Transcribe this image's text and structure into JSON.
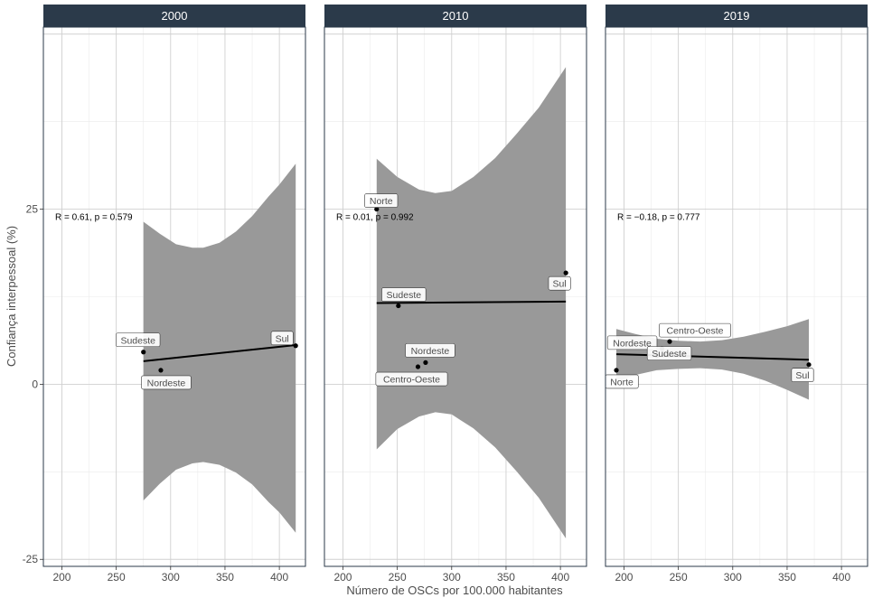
{
  "xlabel": "Número de OSCs por 100.000 habitantes",
  "ylabel": "Confiança interpessoal (%)",
  "y_ticks": [
    -25,
    0,
    25
  ],
  "x_ticks": [
    200,
    250,
    300,
    350,
    400
  ],
  "strip_color": "#2b3a4a",
  "ribbon_color": "#999999",
  "chart_data": [
    {
      "type": "scatter",
      "title": "2000",
      "xlim": [
        183,
        424
      ],
      "ylim": [
        -26,
        51
      ],
      "stat_text": "R = 0.61, p = 0.579",
      "points": [
        {
          "label": "Sudeste",
          "x": 275,
          "y": 4.6
        },
        {
          "label": "Nordeste",
          "x": 291,
          "y": 2.0
        },
        {
          "label": "Sul",
          "x": 415,
          "y": 5.5
        }
      ],
      "fit": {
        "x": [
          275,
          415
        ],
        "y": [
          3.3,
          5.6
        ]
      },
      "ribbon": {
        "x": [
          275,
          290,
          305,
          320,
          330,
          345,
          360,
          375,
          390,
          400,
          415
        ],
        "upper": [
          23.2,
          21.5,
          20.0,
          19.5,
          19.5,
          20.2,
          21.8,
          24.0,
          26.8,
          28.5,
          31.5
        ],
        "lower": [
          -16.6,
          -14.2,
          -12.2,
          -11.3,
          -11.1,
          -11.5,
          -12.6,
          -14.3,
          -16.8,
          -18.3,
          -21.2
        ]
      }
    },
    {
      "type": "scatter",
      "title": "2010",
      "xlim": [
        183,
        424
      ],
      "ylim": [
        -26,
        51
      ],
      "stat_text": "R = 0.01, p = 0.992",
      "points": [
        {
          "label": "Norte",
          "x": 231,
          "y": 25.0
        },
        {
          "label": "Sudeste",
          "x": 251,
          "y": 11.2
        },
        {
          "label": "Nordeste",
          "x": 276,
          "y": 3.1
        },
        {
          "label": "Centro-Oeste",
          "x": 269,
          "y": 2.5
        },
        {
          "label": "Sul",
          "x": 405,
          "y": 15.9
        }
      ],
      "fit": {
        "x": [
          231,
          405
        ],
        "y": [
          11.6,
          11.8
        ]
      },
      "ribbon": {
        "x": [
          231,
          250,
          270,
          285,
          300,
          320,
          340,
          360,
          380,
          405
        ],
        "upper": [
          32.2,
          29.6,
          27.8,
          27.3,
          27.6,
          29.6,
          32.3,
          35.8,
          39.5,
          45.3
        ],
        "lower": [
          -9.3,
          -6.4,
          -4.6,
          -4.0,
          -4.3,
          -6.3,
          -9.0,
          -12.5,
          -16.2,
          -22.0
        ]
      }
    },
    {
      "type": "scatter",
      "title": "2019",
      "xlim": [
        183,
        424
      ],
      "ylim": [
        -26,
        51
      ],
      "stat_text": "R = −0.18, p = 0.777",
      "points": [
        {
          "label": "Nordeste",
          "x": 235,
          "y": 5.1
        },
        {
          "label": "Centro-Oeste",
          "x": 242,
          "y": 6.1
        },
        {
          "label": "Sudeste",
          "x": 230,
          "y": 4.1
        },
        {
          "label": "Norte",
          "x": 193,
          "y": 2.0
        },
        {
          "label": "Sul",
          "x": 370,
          "y": 2.8
        }
      ],
      "fit": {
        "x": [
          193,
          370
        ],
        "y": [
          4.3,
          3.5
        ]
      },
      "ribbon": {
        "x": [
          193,
          210,
          230,
          250,
          270,
          290,
          310,
          330,
          350,
          370
        ],
        "upper": [
          7.9,
          7.2,
          6.5,
          6.2,
          6.1,
          6.3,
          6.8,
          7.5,
          8.3,
          9.3
        ],
        "lower": [
          0.3,
          1.3,
          2.0,
          2.2,
          2.3,
          2.1,
          1.5,
          0.5,
          -0.8,
          -2.2
        ]
      }
    }
  ]
}
